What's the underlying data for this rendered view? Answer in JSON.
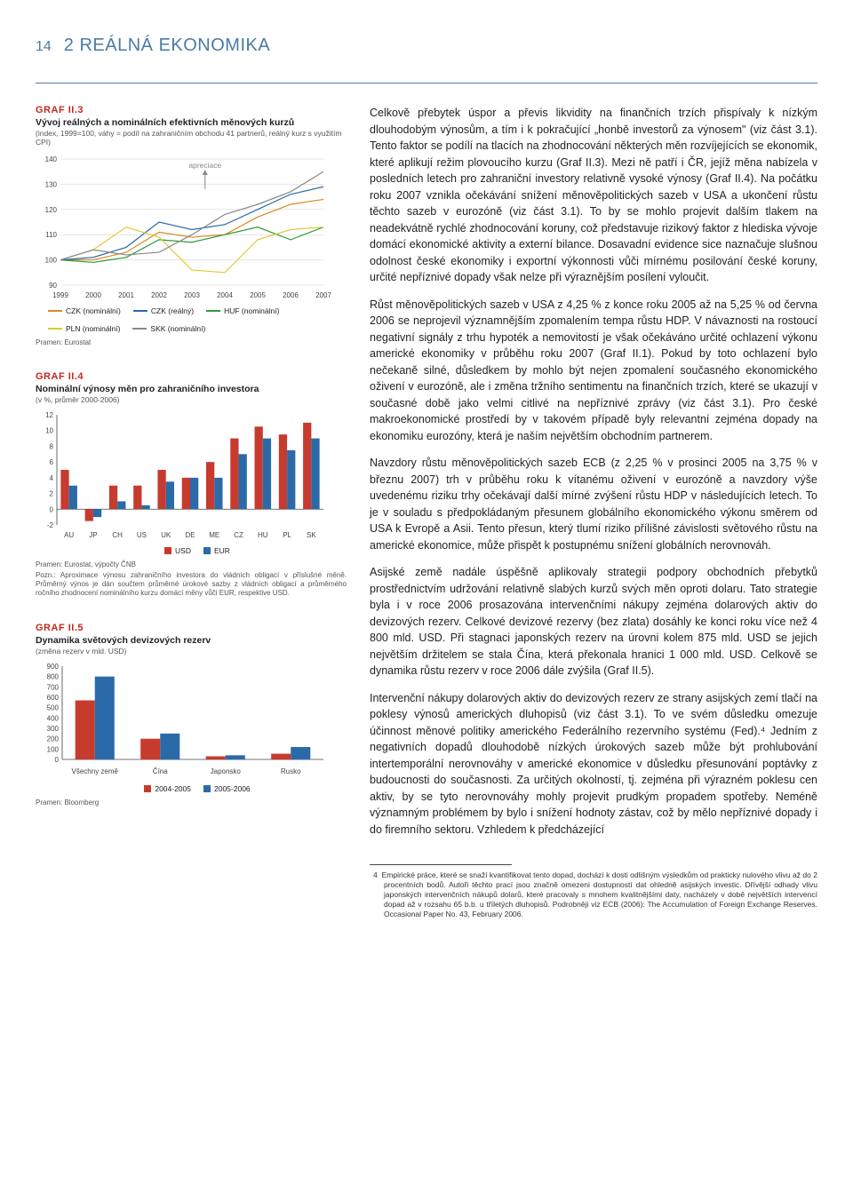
{
  "header": {
    "page_number": "14",
    "section": "2 REÁLNÁ EKONOMIKA"
  },
  "graf3": {
    "label": "GRAF II.3",
    "title": "Vývoj reálných a nominálních efektivních měnových kurzů",
    "subtitle": "(index, 1999=100, váhy = podíl na zahraničním obchodu 41 partnerů, reálný kurz s využitím CPI)",
    "annotation": "apreciace",
    "source": "Pramen: Eurostat",
    "type": "line",
    "ylim": [
      90,
      140
    ],
    "ytick_step": 10,
    "x_labels": [
      "1999",
      "2000",
      "2001",
      "2002",
      "2003",
      "2004",
      "2005",
      "2006",
      "2007"
    ],
    "series": [
      {
        "name": "CZK (nominální)",
        "color": "#d9891f",
        "values": [
          100,
          100,
          103,
          111,
          109,
          110,
          117,
          122,
          124
        ]
      },
      {
        "name": "CZK (reálný)",
        "color": "#2b6aa9",
        "values": [
          100,
          101,
          105,
          115,
          112,
          114,
          120,
          126,
          129
        ]
      },
      {
        "name": "HUF (nominální)",
        "color": "#2f9a3b",
        "values": [
          100,
          99,
          101,
          108,
          107,
          110,
          113,
          108,
          113
        ]
      },
      {
        "name": "PLN (nominální)",
        "color": "#e6c631",
        "values": [
          100,
          104,
          113,
          109,
          96,
          95,
          108,
          112,
          113
        ]
      },
      {
        "name": "SKK (nominální)",
        "color": "#888888",
        "values": [
          100,
          104,
          102,
          103,
          110,
          118,
          122,
          127,
          135
        ]
      }
    ],
    "legend": [
      {
        "label": "CZK (nominální)",
        "color": "#d9891f"
      },
      {
        "label": "CZK (reálný)",
        "color": "#2b6aa9"
      },
      {
        "label": "HUF (nominální)",
        "color": "#2f9a3b"
      },
      {
        "label": "PLN (nominální)",
        "color": "#e6c631"
      },
      {
        "label": "SKK (nominální)",
        "color": "#888888"
      }
    ],
    "background": "#ffffff",
    "grid_color": "#cccccc",
    "line_width": 1.2
  },
  "graf4": {
    "label": "GRAF II.4",
    "title": "Nominální výnosy měn pro zahraničního investora",
    "subtitle": "(v %, průměr 2000-2006)",
    "source": "Pramen: Eurostat, výpočty ČNB",
    "note": "Pozn.: Aproximace výnosu zahraničního investora do vládních obligací v příslušné měně. Průměrný výnos je dán součtem průměrné úrokové sazby z vládních obligací a průměrného ročního zhodnocení nominálního kurzu domácí měny vůči EUR, respektive USD.",
    "type": "bar",
    "ylim": [
      -2,
      12
    ],
    "ytick_step": 2,
    "categories": [
      "AU",
      "JP",
      "CH",
      "US",
      "UK",
      "DE",
      "ME",
      "CZ",
      "HU",
      "PL",
      "SK"
    ],
    "colors": {
      "usd": "#c73a2e",
      "eur": "#2b6aa9"
    },
    "legend": [
      {
        "label": "USD",
        "color": "#c73a2e"
      },
      {
        "label": "EUR",
        "color": "#2b6aa9"
      }
    ],
    "data": {
      "usd": [
        5.0,
        -1.5,
        3.0,
        3.0,
        5.0,
        4.0,
        6.0,
        9.0,
        10.5,
        9.5,
        11.0
      ],
      "eur": [
        3.0,
        -1.0,
        1.0,
        0.5,
        3.5,
        4.0,
        4.0,
        7.0,
        9.0,
        7.5,
        9.0
      ]
    },
    "bar_width": 0.34,
    "background": "#ffffff"
  },
  "graf5": {
    "label": "GRAF II.5",
    "title": "Dynamika světových devizových rezerv",
    "subtitle": "(změna rezerv v mld. USD)",
    "source": "Pramen: Bloomberg",
    "type": "bar",
    "ylim": [
      0,
      900
    ],
    "ytick_step": 100,
    "categories": [
      "Všechny země",
      "Čína",
      "Japonsko",
      "Rusko"
    ],
    "colors": {
      "a": "#c73a2e",
      "b": "#2b6aa9"
    },
    "legend": [
      {
        "label": "2004-2005",
        "color": "#c73a2e"
      },
      {
        "label": "2005-2006",
        "color": "#2b6aa9"
      }
    ],
    "data": {
      "a": [
        570,
        200,
        30,
        55
      ],
      "b": [
        800,
        250,
        40,
        120
      ]
    },
    "bar_width": 0.3,
    "background": "#ffffff"
  },
  "body": {
    "p1": "Celkově přebytek úspor a převis likvidity na finančních trzích přispívaly k nízkým dlouhodobým výnosům, a tím i k pokračující „honbě investorů za výnosem\" (viz část 3.1). Tento faktor se podílí na tlacích na zhodnocování některých měn rozvíjejících se ekonomik, které aplikují režim plovoucího kurzu (Graf II.3). Mezi ně patří i ČR, jejíž měna nabízela v posledních letech pro zahraniční investory relativně vysoké výnosy (Graf II.4). Na počátku roku 2007 vznikla očekávání snížení měnověpolitických sazeb v USA a ukončení růstu těchto sazeb v eurozóně (viz část 3.1). To by se mohlo projevit dalším tlakem na neadekvátně rychlé zhodnocování koruny, což představuje rizikový faktor z hlediska vývoje domácí ekonomické aktivity a externí bilance. Dosavadní evidence sice naznačuje slušnou odolnost české ekonomiky i exportní výkonnosti vůči mírnému posilování české koruny, určité nepříznivé dopady však nelze při výraznějším posílení vyloučit.",
    "p2": "Růst měnověpolitických sazeb v USA z 4,25 % z konce roku 2005 až na 5,25 % od června 2006 se neprojevil významnějším zpomalením tempa růstu HDP. V návaznosti na rostoucí negativní signály z trhu hypoték a nemovitostí je však očekáváno určité ochlazení výkonu americké ekonomiky v průběhu roku 2007 (Graf II.1). Pokud by toto ochlazení bylo nečekaně silné, důsledkem by mohlo být nejen zpomalení současného ekonomického oživení v eurozóně, ale i změna tržního sentimentu na finančních trzích, které se ukazují v současné době jako velmi citlivé na nepříznivé zprávy (viz část 3.1). Pro české makroekonomické prostředí by v takovém případě byly relevantní zejména dopady na ekonomiku eurozóny, která je naším největším obchodním partnerem.",
    "p3": "Navzdory růstu měnověpolitických sazeb ECB (z 2,25 % v prosinci 2005 na 3,75 % v březnu 2007) trh v průběhu roku k vítanému oživení v eurozóně a navzdory výše uvedenému riziku trhy očekávají další mírné zvýšení růstu HDP v následujících letech. To je v souladu s předpokládaným přesunem globálního ekonomického výkonu směrem od USA k Evropě a Asii. Tento přesun, který tlumí riziko přílišné závislosti světového růstu na americké ekonomice, může přispět k postupnému snížení globálních nerovnováh.",
    "p4": "Asijské země nadále úspěšně aplikovaly strategii podpory obchodních přebytků prostřednictvím udržování relativně slabých kurzů svých měn oproti dolaru. Tato strategie byla i v roce 2006 prosazována intervenčními nákupy zejména dolarových aktiv do devizových rezerv. Celkové devizové rezervy (bez zlata) dosáhly ke konci roku více než 4 800 mld. USD. Při stagnaci japonských rezerv na úrovni kolem 875 mld. USD se jejich největším držitelem se stala Čína, která překonala hranici 1 000 mld. USD. Celkově se dynamika růstu rezerv v roce 2006 dále zvýšila (Graf II.5).",
    "p5": "Intervenční nákupy dolarových aktiv do devizových rezerv ze strany asijských zemí tlačí na poklesy výnosů amerických dluhopisů (viz část 3.1). To ve svém důsledku omezuje účinnost měnové politiky amerického Federálního rezervního systému (Fed).⁴ Jedním z negativních dopadů dlouhodobě nízkých úrokových sazeb může být prohlubování intertemporální nerovnováhy v americké ekonomice v důsledku přesunování poptávky z budoucnosti do současnosti. Za určitých okolností, tj. zejména při výrazném poklesu cen aktiv, by se tyto nerovnováhy mohly projevit prudkým propadem spotřeby. Neméně významným problémem by bylo i snížení hodnoty zástav, což by mělo nepříznivé dopady i do firemního sektoru. Vzhledem k předcházející"
  },
  "footnote": {
    "marker": "4",
    "text": "Empirické práce, které se snaží kvantifikovat tento dopad, dochází k dosti odlišným výsledkům od prakticky nulového vlivu až do 2 procentních bodů. Autoři těchto prací jsou značně omezeni dostupností dat ohledně asijských investic. Dřívější odhady vlivu japonských intervenčních nákupů dolarů, které pracovaly s mnohem kvalitnějšími daty, nacházely v době největších intervencí dopad až v rozsahu 65 b.b. u tříletých dluhopisů. Podrobněji viz ECB (2006): The Accumulation of Foreign Exchange Reserves. Occasional Paper No. 43, February 2006."
  }
}
